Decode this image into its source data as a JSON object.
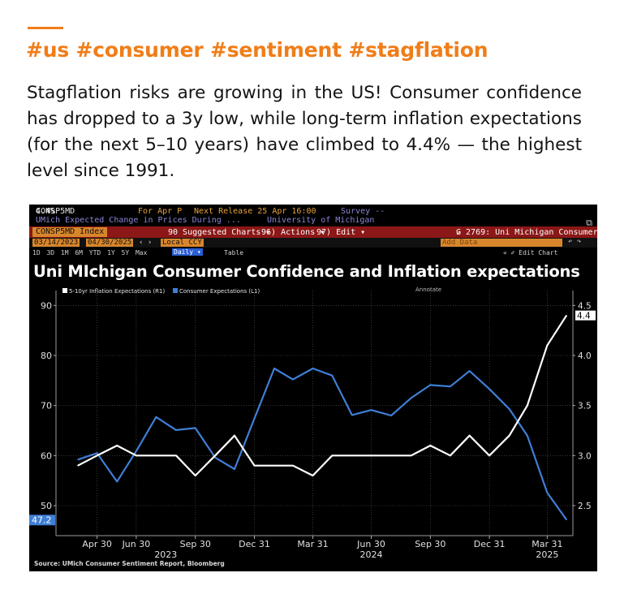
{
  "header": {
    "hashtags": "#us #consumer #sentiment #stagflation",
    "body": "Stagflation risks are growing in the US! Consumer confidence has dropped to a 3y low, while long-term inflation expectations (for the next 5–10 years) have climbed to 4.4% — the highest level since 1991."
  },
  "terminal": {
    "ticker": "CONSP5MD",
    "ticker_value": "4.4%",
    "for_period": "For Apr P",
    "next_release": "Next Release 25 Apr 16:00",
    "survey": "Survey --",
    "description": "UMich Expected Change in Prices During ...",
    "source_name": "University of Michigan",
    "index_label": "CONSP5MD Index",
    "suggested_charts": "90 Suggested Charts ▾",
    "actions": "96) Actions ▾",
    "edit": "97) Edit ▾",
    "chart_name": "G 2769: Uni Michigan Consumer",
    "date_start": "03/14/2023",
    "date_end": "04/30/2025",
    "currency": "Local CCY",
    "add_data": "Add Data",
    "periods": "1D 3D 1M 6M YTD 1Y 5Y Max",
    "daily": "Daily ▾",
    "table": "Table",
    "edit_chart": "« ✐ Edit Chart",
    "annotate": "Annotate",
    "source_note": "Source: UMich Consumer Sentiment Report, Bloomberg",
    "colors": {
      "accent": "#f07d18",
      "consumer_line": "#3f7fd6",
      "inflation_line": "#ffffff",
      "bar_red": "#8b1717",
      "bar_orange": "#d8862b"
    }
  },
  "chart_data": {
    "type": "line",
    "title": "Uni MIchigan Consumer Confidence and Inflation expectations",
    "x": [
      "2023-03-31",
      "2023-04-30",
      "2023-05-31",
      "2023-06-30",
      "2023-07-31",
      "2023-08-31",
      "2023-09-30",
      "2023-10-31",
      "2023-11-30",
      "2023-12-31",
      "2024-01-31",
      "2024-02-29",
      "2024-03-31",
      "2024-04-30",
      "2024-05-31",
      "2024-06-30",
      "2024-07-31",
      "2024-08-31",
      "2024-09-30",
      "2024-10-31",
      "2024-11-30",
      "2024-12-31",
      "2025-01-31",
      "2025-02-28",
      "2025-03-31",
      "2025-04-30"
    ],
    "x_ticks": [
      "Apr 30",
      "Jun 30",
      "Sep 30",
      "Dec 31",
      "Mar 31",
      "Jun 30",
      "Sep 30",
      "Dec 31",
      "Mar 31"
    ],
    "year_labels": [
      "2023",
      "2024",
      "2025"
    ],
    "series": [
      {
        "name": "5-10yr Inflation Expectations (R1)",
        "axis": "right",
        "color": "#ffffff",
        "values": [
          2.9,
          3.0,
          3.1,
          3.0,
          3.0,
          3.0,
          2.8,
          3.0,
          3.2,
          2.9,
          2.9,
          2.9,
          2.8,
          3.0,
          3.0,
          3.0,
          3.0,
          3.0,
          3.1,
          3.0,
          3.2,
          3.0,
          3.2,
          3.5,
          4.1,
          4.4
        ],
        "last_label": "4.4"
      },
      {
        "name": "Consumer Expectations (L1)",
        "axis": "left",
        "color": "#3f7fd6",
        "values": [
          59.2,
          60.5,
          54.8,
          60.9,
          67.7,
          65.1,
          65.5,
          59.6,
          57.3,
          67.4,
          77.4,
          75.2,
          77.4,
          76.0,
          68.1,
          69.1,
          68.0,
          71.5,
          74.1,
          73.8,
          76.9,
          73.3,
          69.3,
          64.0,
          52.6,
          47.2
        ],
        "last_label": "47.2"
      }
    ],
    "y_left": {
      "ticks": [
        50,
        60,
        70,
        80,
        90
      ],
      "ylim": [
        44,
        92
      ]
    },
    "y_right": {
      "ticks": [
        "2.5",
        "3.0",
        "3.5",
        "4.0",
        "4.5"
      ],
      "ylim": [
        2.2,
        4.6
      ]
    },
    "grid": true,
    "legend": "top-left"
  }
}
